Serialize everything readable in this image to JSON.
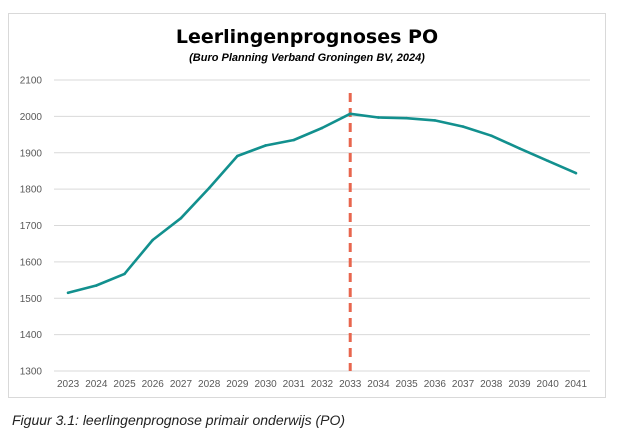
{
  "chart_data": {
    "type": "line",
    "title": "Leerlingenprognoses PO",
    "subtitle": "(Buro Planning Verband Groningen BV, 2024)",
    "xlabel": "",
    "ylabel": "",
    "x": [
      2023,
      2024,
      2025,
      2026,
      2027,
      2028,
      2029,
      2030,
      2031,
      2032,
      2033,
      2034,
      2035,
      2036,
      2037,
      2038,
      2039,
      2040,
      2041
    ],
    "series": [
      {
        "values": [
          1515,
          1535,
          1567,
          1660,
          1720,
          1803,
          1891,
          1920,
          1935,
          1968,
          2007,
          1997,
          1995,
          1989,
          1972,
          1947,
          1912,
          1878,
          1844
        ]
      }
    ],
    "ylim": [
      1300,
      2100
    ],
    "yticks": [
      1300,
      1400,
      1500,
      1600,
      1700,
      1800,
      1900,
      2000,
      2100
    ],
    "grid": "horizontal",
    "legend": "none",
    "reference_line_x": 2033,
    "colors": {
      "line": "#12908e",
      "reference": "#e8664e",
      "grid": "#d9d9d9",
      "tick_text": "#595959"
    }
  },
  "caption": "Figuur 3.1: leerlingenprognose primair onderwijs (PO)"
}
